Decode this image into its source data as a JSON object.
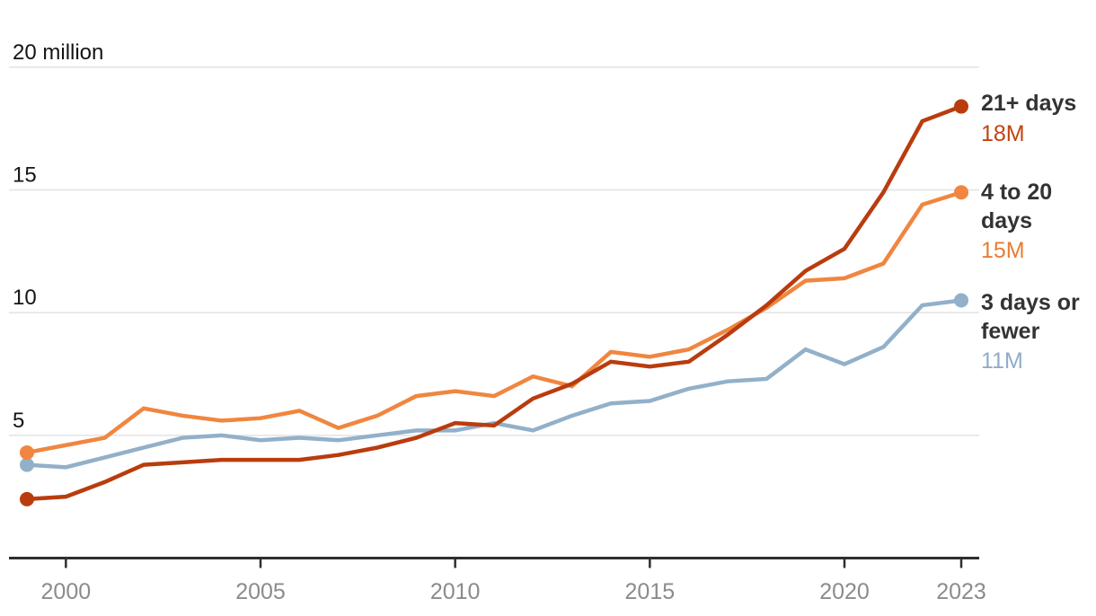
{
  "chart_data": {
    "type": "line",
    "title": "",
    "unit_top_label": "20 million",
    "x_label": "",
    "y_label": "",
    "xlim": [
      1999,
      2023
    ],
    "ylim": [
      0,
      20
    ],
    "grid": true,
    "legend_position": "right",
    "x": [
      1999,
      2000,
      2001,
      2002,
      2003,
      2004,
      2005,
      2006,
      2007,
      2008,
      2009,
      2010,
      2011,
      2012,
      2013,
      2014,
      2015,
      2016,
      2017,
      2018,
      2019,
      2020,
      2021,
      2022,
      2023
    ],
    "x_ticks": [
      "2000",
      "2005",
      "2010",
      "2015",
      "2020",
      "2023"
    ],
    "y_ticks": [
      {
        "value": 5,
        "label": "5"
      },
      {
        "value": 10,
        "label": "10"
      },
      {
        "value": 15,
        "label": "15"
      },
      {
        "value": 20,
        "label": "20 million"
      }
    ],
    "series": [
      {
        "name": "3 days or fewer",
        "end_label": "11M",
        "color": "#92b0c9",
        "label_color": "#8fadc8",
        "values": [
          3.8,
          3.7,
          4.1,
          4.5,
          4.9,
          5.0,
          4.8,
          4.9,
          4.8,
          5.0,
          5.2,
          5.2,
          5.5,
          5.2,
          5.8,
          6.3,
          6.4,
          6.9,
          7.2,
          7.3,
          8.5,
          7.9,
          8.6,
          10.3,
          10.5
        ]
      },
      {
        "name": "4 to 20 days",
        "end_label": "15M",
        "color": "#f0863f",
        "label_color": "#e87d33",
        "values": [
          4.3,
          4.6,
          4.9,
          6.1,
          5.8,
          5.6,
          5.7,
          6.0,
          5.3,
          5.8,
          6.6,
          6.8,
          6.6,
          7.4,
          7.0,
          8.4,
          8.2,
          8.5,
          9.3,
          10.2,
          11.3,
          11.4,
          12.0,
          14.4,
          14.9
        ]
      },
      {
        "name": "21+ days",
        "end_label": "18M",
        "color": "#b93c0f",
        "label_color": "#c1440e",
        "values": [
          2.4,
          2.5,
          3.1,
          3.8,
          3.9,
          4.0,
          4.0,
          4.0,
          4.2,
          4.5,
          4.9,
          5.5,
          5.4,
          6.5,
          7.1,
          8.0,
          7.8,
          8.0,
          9.1,
          10.3,
          11.7,
          12.6,
          14.9,
          17.8,
          18.4
        ]
      }
    ],
    "colors": {
      "grid_line": "#e3e3e3",
      "axis_line": "#2e2e2e",
      "y_tick_label": "#141414",
      "x_tick_label": "#8b8b8b",
      "legend_name": "#333333"
    }
  },
  "legend": {
    "entries": [
      {
        "name": "21+ days",
        "value": "18M"
      },
      {
        "name": "4 to 20 days",
        "value": "15M"
      },
      {
        "name": "3 days or fewer",
        "value": "11M"
      }
    ]
  }
}
